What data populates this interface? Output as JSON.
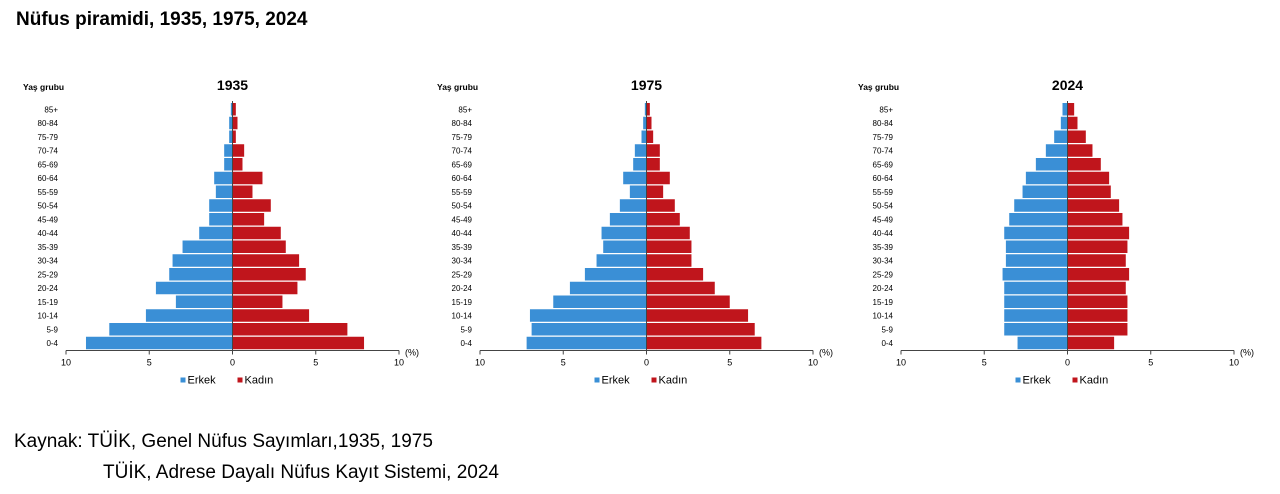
{
  "page": {
    "title": "Nüfus piramidi, 1935, 1975, 2024"
  },
  "source": {
    "line1": "Kaynak: TÜİK, Genel Nüfus Sayımları,1935, 1975",
    "line2": "TÜİK, Adrese Dayalı Nüfus Kayıt Sistemi, 2024"
  },
  "colors": {
    "male": "#3a8fd6",
    "female": "#c0151c"
  },
  "chart_data": [
    {
      "type": "bar",
      "orientation": "horizontal-pyramid",
      "title": "1935",
      "ylabel": "Yaş grubu",
      "xlabel": "(%)",
      "xlim": [
        -10,
        10
      ],
      "xticks": [
        "10",
        "5",
        "0",
        "5",
        "10"
      ],
      "legend_position": "bottom",
      "categories": [
        "0-4",
        "5-9",
        "10-14",
        "15-19",
        "20-24",
        "25-29",
        "30-34",
        "35-39",
        "40-44",
        "45-49",
        "50-54",
        "55-59",
        "60-64",
        "65-69",
        "70-74",
        "75-79",
        "80-84",
        "85+"
      ],
      "series": [
        {
          "name": "Erkek",
          "values": [
            8.8,
            7.4,
            5.2,
            3.4,
            4.6,
            3.8,
            3.6,
            3.0,
            2.0,
            1.4,
            1.4,
            1.0,
            1.1,
            0.5,
            0.5,
            0.2,
            0.2,
            0.1
          ]
        },
        {
          "name": "Kadın",
          "values": [
            7.9,
            6.9,
            4.6,
            3.0,
            3.9,
            4.4,
            4.0,
            3.2,
            2.9,
            1.9,
            2.3,
            1.2,
            1.8,
            0.6,
            0.7,
            0.2,
            0.3,
            0.2
          ]
        }
      ]
    },
    {
      "type": "bar",
      "orientation": "horizontal-pyramid",
      "title": "1975",
      "ylabel": "Yaş grubu",
      "xlabel": "(%)",
      "xlim": [
        -10,
        10
      ],
      "xticks": [
        "10",
        "5",
        "0",
        "5",
        "10"
      ],
      "legend_position": "bottom",
      "categories": [
        "0-4",
        "5-9",
        "10-14",
        "15-19",
        "20-24",
        "25-29",
        "30-34",
        "35-39",
        "40-44",
        "45-49",
        "50-54",
        "55-59",
        "60-64",
        "65-69",
        "70-74",
        "75-79",
        "80-84",
        "85+"
      ],
      "series": [
        {
          "name": "Erkek",
          "values": [
            7.2,
            6.9,
            7.0,
            5.6,
            4.6,
            3.7,
            3.0,
            2.6,
            2.7,
            2.2,
            1.6,
            1.0,
            1.4,
            0.8,
            0.7,
            0.3,
            0.2,
            0.1
          ]
        },
        {
          "name": "Kadın",
          "values": [
            6.9,
            6.5,
            6.1,
            5.0,
            4.1,
            3.4,
            2.7,
            2.7,
            2.6,
            2.0,
            1.7,
            1.0,
            1.4,
            0.8,
            0.8,
            0.4,
            0.3,
            0.2
          ]
        }
      ]
    },
    {
      "type": "bar",
      "orientation": "horizontal-pyramid",
      "title": "2024",
      "ylabel": "Yaş grubu",
      "xlabel": "(%)",
      "xlim": [
        -10,
        10
      ],
      "xticks": [
        "10",
        "5",
        "0",
        "5",
        "10"
      ],
      "legend_position": "bottom",
      "categories": [
        "0-4",
        "5-9",
        "10-14",
        "15-19",
        "20-24",
        "25-29",
        "30-34",
        "35-39",
        "40-44",
        "45-49",
        "50-54",
        "55-59",
        "60-64",
        "65-69",
        "70-74",
        "75-79",
        "80-84",
        "85+"
      ],
      "series": [
        {
          "name": "Erkek",
          "values": [
            3.0,
            3.8,
            3.8,
            3.8,
            3.8,
            3.9,
            3.7,
            3.7,
            3.8,
            3.5,
            3.2,
            2.7,
            2.5,
            1.9,
            1.3,
            0.8,
            0.4,
            0.3
          ]
        },
        {
          "name": "Kadın",
          "values": [
            2.8,
            3.6,
            3.6,
            3.6,
            3.5,
            3.7,
            3.5,
            3.6,
            3.7,
            3.3,
            3.1,
            2.6,
            2.5,
            2.0,
            1.5,
            1.1,
            0.6,
            0.4
          ]
        }
      ]
    }
  ]
}
